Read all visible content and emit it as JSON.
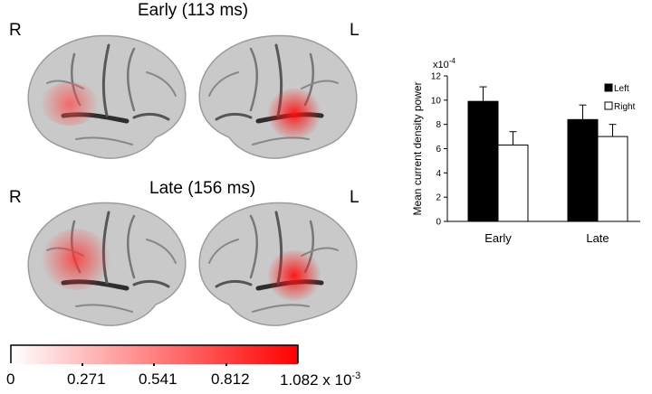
{
  "panels": [
    {
      "title": "Early (113 ms)",
      "left_label": "R",
      "right_label": "L"
    },
    {
      "title": "Late (156 ms)",
      "left_label": "R",
      "right_label": "L"
    }
  ],
  "colorbar": {
    "ticks": [
      "0",
      "0.271",
      "0.541",
      "0.812",
      "1.082"
    ],
    "multiplier": "x 10",
    "exponent": "-3",
    "low_color": "#ffffff",
    "high_color": "#ff0000"
  },
  "chart_data": {
    "type": "bar",
    "categories": [
      "Early",
      "Late"
    ],
    "series": [
      {
        "name": "Left",
        "values": [
          9.9,
          8.4
        ],
        "errors": [
          1.2,
          1.2
        ],
        "fill": "#000000"
      },
      {
        "name": "Right",
        "values": [
          6.3,
          7.0
        ],
        "errors": [
          1.1,
          1.0
        ],
        "fill": "#ffffff"
      }
    ],
    "ylabel": "Mean current density power",
    "scale_note": "x10",
    "scale_exponent": "-4",
    "ylim": [
      0,
      12
    ],
    "yticks": [
      "0",
      "2",
      "4",
      "6",
      "8",
      "10",
      "12"
    ],
    "legend_position": "top-right",
    "grid": false
  }
}
